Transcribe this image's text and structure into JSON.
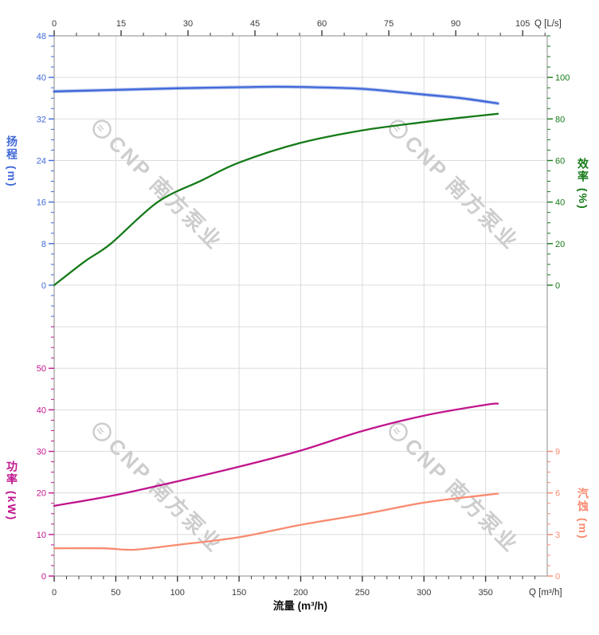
{
  "watermark": {
    "text": "CNP 南方泵业"
  },
  "colors": {
    "head": "#4169d8",
    "efficiency": "#157a18",
    "power": "#c0158d",
    "npsh": "#fa8a70",
    "grid": "#dcdcdc",
    "spine": "#9e9e9e",
    "x_axis_text": "#3a3a3a",
    "watermark": "#cdcdcd"
  },
  "chart_data": {
    "type": "line",
    "title": "",
    "x_axes": {
      "top": {
        "unit_label": "Q [L/s]",
        "unit": "L/s",
        "ticks": [
          0,
          15,
          30,
          45,
          60,
          75,
          90,
          105
        ],
        "minor_step": 5,
        "range": [
          0,
          110.5
        ],
        "position": "top"
      },
      "bottom": {
        "unit_label": "Q [m³/h]",
        "title": "流量 (m³/h)",
        "unit": "m³/h",
        "ticks": [
          0,
          50,
          100,
          150,
          200,
          250,
          300,
          350
        ],
        "minor_step": 10,
        "range": [
          0,
          400
        ],
        "grid_ticks": [
          50,
          100,
          150,
          200,
          250,
          300,
          350,
          400
        ],
        "position": "bottom"
      }
    },
    "y_axes": {
      "head": {
        "title": "扬程 (m)",
        "unit": "m",
        "side": "left",
        "panel": "top",
        "ticks": [
          0,
          8,
          16,
          24,
          32,
          40,
          48
        ],
        "range": [
          0,
          48
        ],
        "minor_step": 2,
        "minor_range": [
          -8,
          48
        ],
        "color": "#4169d8"
      },
      "efficiency": {
        "title": "效率 (%)",
        "unit": "%",
        "side": "right",
        "panel": "top",
        "ticks": [
          0,
          20,
          40,
          60,
          80,
          100
        ],
        "range": [
          0,
          100
        ],
        "minor_step": 5,
        "minor_range": [
          0,
          120
        ],
        "color": "#157a18"
      },
      "power": {
        "title": "功率 (kW)",
        "unit": "kW",
        "side": "left",
        "panel": "bottom",
        "ticks": [
          0,
          10,
          20,
          30,
          40,
          50
        ],
        "range": [
          0,
          60
        ],
        "minor_step": 2.5,
        "minor_range": [
          0,
          60
        ],
        "color": "#c0158d"
      },
      "npsh": {
        "title": "汽蚀 (m)",
        "unit": "m",
        "side": "right",
        "panel": "bottom",
        "ticks": [
          0,
          3,
          6,
          9
        ],
        "range": [
          0,
          9
        ],
        "minor_step": 0.75,
        "minor_range": [
          0,
          9
        ],
        "color": "#fa8a70"
      }
    },
    "series": [
      {
        "name": "head",
        "axis": "head",
        "x_unit": "m³/h",
        "color": "#4169d8",
        "halo": true,
        "points": [
          [
            0,
            37.3
          ],
          [
            50,
            37.6
          ],
          [
            100,
            37.9
          ],
          [
            150,
            38.1
          ],
          [
            180,
            38.2
          ],
          [
            210,
            38.1
          ],
          [
            250,
            37.8
          ],
          [
            300,
            36.7
          ],
          [
            330,
            36.0
          ],
          [
            360,
            35.0
          ]
        ]
      },
      {
        "name": "efficiency",
        "axis": "efficiency",
        "x_unit": "m³/h",
        "color": "#157a18",
        "halo": false,
        "points": [
          [
            0,
            0
          ],
          [
            25,
            11.5
          ],
          [
            46,
            20
          ],
          [
            84,
            40
          ],
          [
            120,
            50.5
          ],
          [
            150,
            59
          ],
          [
            200,
            68.5
          ],
          [
            250,
            74.5
          ],
          [
            300,
            78.5
          ],
          [
            330,
            80.6
          ],
          [
            360,
            82.5
          ]
        ]
      },
      {
        "name": "power",
        "axis": "power",
        "x_unit": "m³/h",
        "color": "#c0158d",
        "halo": false,
        "points": [
          [
            0,
            16.9
          ],
          [
            50,
            19.5
          ],
          [
            100,
            22.8
          ],
          [
            150,
            26.3
          ],
          [
            200,
            30.2
          ],
          [
            250,
            34.9
          ],
          [
            300,
            38.6
          ],
          [
            350,
            41.2
          ],
          [
            360,
            41.5
          ]
        ]
      },
      {
        "name": "npsh",
        "axis": "npsh",
        "x_unit": "m³/h",
        "color": "#fa8a70",
        "halo": false,
        "points": [
          [
            0,
            2.0
          ],
          [
            40,
            2.0
          ],
          [
            65,
            1.9
          ],
          [
            100,
            2.25
          ],
          [
            150,
            2.8
          ],
          [
            200,
            3.7
          ],
          [
            250,
            4.45
          ],
          [
            300,
            5.3
          ],
          [
            350,
            5.85
          ],
          [
            360,
            5.95
          ]
        ]
      }
    ]
  }
}
